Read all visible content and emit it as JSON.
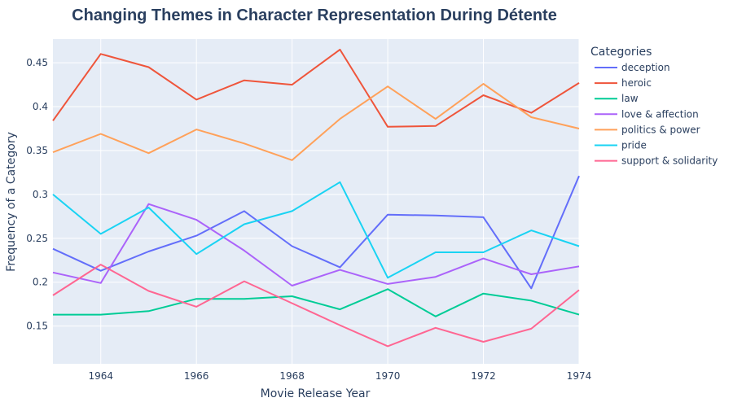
{
  "chart_data": {
    "type": "line",
    "title": "Changing Themes in Character Representation During Détente",
    "xlabel": "Movie Release Year",
    "ylabel": "Frequency of a Category",
    "xlim": [
      1963,
      1974
    ],
    "ylim": [
      0.107,
      0.477
    ],
    "x_ticks": [
      1964,
      1966,
      1968,
      1970,
      1972,
      1974
    ],
    "y_ticks": [
      0.15,
      0.2,
      0.25,
      0.3,
      0.35,
      0.4,
      0.45
    ],
    "y_tick_labels": [
      "0.15",
      "0.2",
      "0.25",
      "0.3",
      "0.35",
      "0.4",
      "0.45"
    ],
    "grid": true,
    "legend": {
      "title": "Categories",
      "placement": "right"
    },
    "x": [
      1963,
      1964,
      1965,
      1966,
      1967,
      1968,
      1969,
      1970,
      1971,
      1972,
      1973,
      1974
    ],
    "series": [
      {
        "name": "deception",
        "color": "#636efa",
        "values": [
          0.238,
          0.213,
          0.235,
          0.253,
          0.281,
          0.241,
          0.217,
          0.277,
          0.276,
          0.274,
          0.193,
          0.321
        ]
      },
      {
        "name": "heroic",
        "color": "#ef553b",
        "values": [
          0.384,
          0.46,
          0.445,
          0.408,
          0.43,
          0.425,
          0.465,
          0.377,
          0.378,
          0.413,
          0.393,
          0.427
        ]
      },
      {
        "name": "law",
        "color": "#00cc96",
        "values": [
          0.163,
          0.163,
          0.167,
          0.181,
          0.181,
          0.184,
          0.169,
          0.192,
          0.161,
          0.187,
          0.179,
          0.163
        ]
      },
      {
        "name": "love & affection",
        "color": "#ab63fa",
        "values": [
          0.211,
          0.199,
          0.289,
          0.271,
          0.236,
          0.196,
          0.214,
          0.198,
          0.206,
          0.227,
          0.209,
          0.218
        ]
      },
      {
        "name": "politics & power",
        "color": "#ffa15a",
        "values": [
          0.348,
          0.369,
          0.347,
          0.374,
          0.358,
          0.339,
          0.386,
          0.423,
          0.386,
          0.426,
          0.388,
          0.375
        ]
      },
      {
        "name": "pride",
        "color": "#19d3f3",
        "values": [
          0.3,
          0.255,
          0.285,
          0.232,
          0.266,
          0.281,
          0.314,
          0.205,
          0.234,
          0.234,
          0.259,
          0.241
        ]
      },
      {
        "name": "support & solidarity",
        "color": "#ff6692",
        "values": [
          0.185,
          0.22,
          0.19,
          0.172,
          0.201,
          0.176,
          0.151,
          0.127,
          0.148,
          0.132,
          0.147,
          0.191
        ]
      }
    ]
  }
}
